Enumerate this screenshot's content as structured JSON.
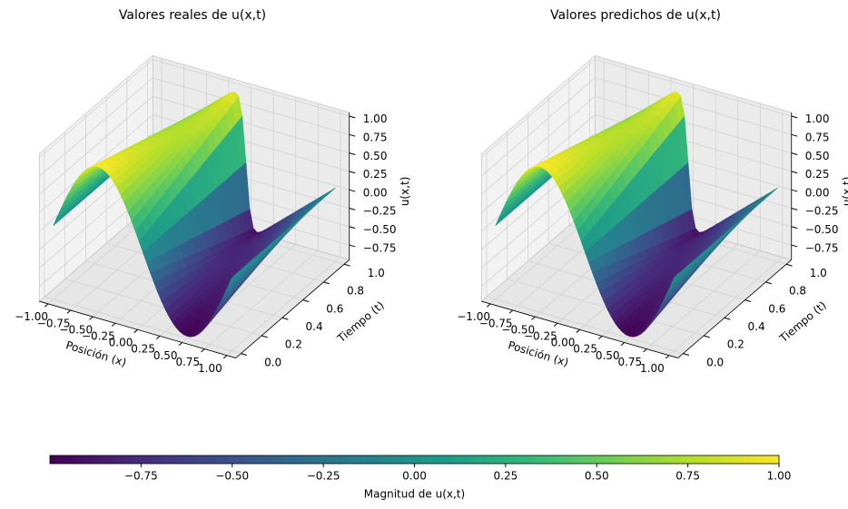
{
  "chart_data": [
    {
      "type": "scatter3d",
      "title": "Valores reales de u(x,t)",
      "xlabel": "Posición (x)",
      "ylabel": "Tiempo (t)",
      "zlabel": "u(x,t)",
      "xlim": [
        -1.1,
        1.1
      ],
      "ylim": [
        -0.05,
        1.05
      ],
      "zlim": [
        -0.95,
        1.05
      ],
      "xticks": [
        {
          "value": -1,
          "label": "−1.00"
        },
        {
          "value": -0.75,
          "label": "−0.75"
        },
        {
          "value": -0.5,
          "label": "−0.50"
        },
        {
          "value": -0.25,
          "label": "−0.25"
        },
        {
          "value": 0,
          "label": "0.00"
        },
        0.25,
        {
          "value": 0.5,
          "label": "0.50"
        },
        0.75,
        {
          "value": 1,
          "label": "1.00"
        }
      ],
      "yticks": [
        {
          "value": 0,
          "label": "0.0"
        },
        0.2,
        0.4,
        0.6,
        0.8,
        {
          "value": 1,
          "label": "1.0"
        }
      ],
      "zticks": [
        {
          "value": -0.75,
          "label": "−0.75"
        },
        {
          "value": -0.5,
          "label": "−0.50"
        },
        {
          "value": -0.25,
          "label": "−0.25"
        },
        {
          "value": 0,
          "label": "0.00"
        },
        0.25,
        {
          "value": 0.5,
          "label": "0.50"
        },
        0.75,
        {
          "value": 1,
          "label": "1.00"
        }
      ],
      "grid": true
    },
    {
      "type": "scatter3d",
      "title": "Valores predichos de u(x,t)",
      "xlabel": "Posición (x)",
      "ylabel": "Tiempo (t)",
      "zlabel": "u(x,t)",
      "xlim": [
        -1.1,
        1.1
      ],
      "ylim": [
        -0.05,
        1.05
      ],
      "zlim": [
        -0.95,
        1.05
      ],
      "xticks": [
        {
          "value": -1,
          "label": "−1.00"
        },
        {
          "value": -0.75,
          "label": "−0.75"
        },
        {
          "value": -0.5,
          "label": "−0.50"
        },
        {
          "value": -0.25,
          "label": "−0.25"
        },
        {
          "value": 0,
          "label": "0.00"
        },
        0.25,
        {
          "value": 0.5,
          "label": "0.50"
        },
        0.75,
        {
          "value": 1,
          "label": "1.00"
        }
      ],
      "yticks": [
        {
          "value": 0,
          "label": "0.0"
        },
        0.2,
        0.4,
        0.6,
        0.8,
        {
          "value": 1,
          "label": "1.0"
        }
      ],
      "zticks": [
        {
          "value": -0.75,
          "label": "−0.75"
        },
        {
          "value": -0.5,
          "label": "−0.50"
        },
        {
          "value": -0.25,
          "label": "−0.25"
        },
        {
          "value": 0,
          "label": "0.00"
        },
        0.25,
        {
          "value": 0.5,
          "label": "0.50"
        },
        0.75,
        {
          "value": 1,
          "label": "1.00"
        }
      ],
      "grid": true
    }
  ],
  "colorbar": {
    "label": "Magnitud de u(x,t)",
    "lim": [
      -1,
      1
    ],
    "ticks": [
      {
        "value": -0.75,
        "label": "−0.75"
      },
      {
        "value": -0.5,
        "label": "−0.50"
      },
      {
        "value": -0.25,
        "label": "−0.25"
      },
      {
        "value": 0,
        "label": "0.00"
      },
      0.25,
      {
        "value": 0.5,
        "label": "0.50"
      },
      0.75,
      {
        "value": 1,
        "label": "1.00"
      }
    ]
  }
}
